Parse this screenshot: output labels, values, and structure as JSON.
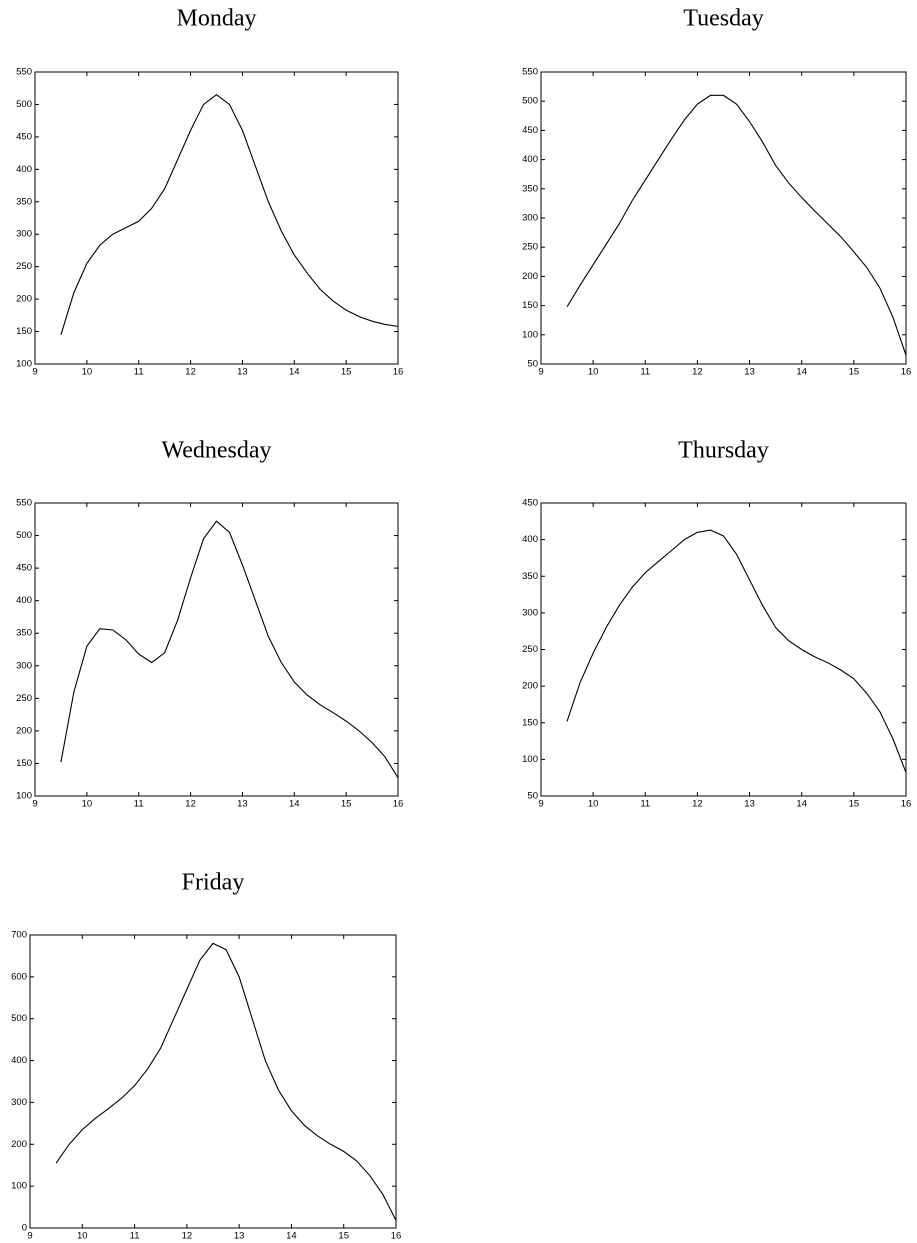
{
  "chart_data": [
    {
      "type": "line",
      "title": "Monday",
      "color": "#000000",
      "x": [
        9.5,
        9.75,
        10,
        10.25,
        10.5,
        10.75,
        11,
        11.25,
        11.5,
        11.75,
        12,
        12.25,
        12.5,
        12.75,
        13,
        13.25,
        13.5,
        13.75,
        14,
        14.25,
        14.5,
        14.75,
        15,
        15.25,
        15.5,
        15.75,
        16
      ],
      "values": [
        145,
        210,
        255,
        283,
        300,
        310,
        320,
        340,
        370,
        415,
        460,
        500,
        515,
        500,
        460,
        405,
        350,
        305,
        268,
        240,
        215,
        197,
        183,
        173,
        166,
        161,
        158
      ],
      "xlim": [
        9,
        16
      ],
      "xticks": [
        9,
        10,
        11,
        12,
        13,
        14,
        15,
        16
      ],
      "ylim": [
        100,
        550
      ],
      "yticks": [
        100,
        150,
        200,
        250,
        300,
        350,
        400,
        450,
        500,
        550
      ]
    },
    {
      "type": "line",
      "title": "Tuesday",
      "color": "#000000",
      "x": [
        9.5,
        9.75,
        10,
        10.25,
        10.5,
        10.75,
        11,
        11.25,
        11.5,
        11.75,
        12,
        12.25,
        12.5,
        12.75,
        13,
        13.25,
        13.5,
        13.75,
        14,
        14.25,
        14.5,
        14.75,
        15,
        15.25,
        15.5,
        15.75,
        16
      ],
      "values": [
        148,
        185,
        220,
        255,
        290,
        330,
        365,
        400,
        435,
        468,
        495,
        510,
        510,
        495,
        465,
        430,
        390,
        360,
        335,
        312,
        290,
        268,
        242,
        215,
        180,
        130,
        65
      ],
      "xlim": [
        9,
        16
      ],
      "xticks": [
        9,
        10,
        11,
        12,
        13,
        14,
        15,
        16
      ],
      "ylim": [
        50,
        550
      ],
      "yticks": [
        50,
        100,
        150,
        200,
        250,
        300,
        350,
        400,
        450,
        500,
        550
      ]
    },
    {
      "type": "line",
      "title": "Wednesday",
      "color": "#000000",
      "x": [
        9.5,
        9.75,
        10,
        10.25,
        10.5,
        10.75,
        11,
        11.25,
        11.5,
        11.75,
        12,
        12.25,
        12.5,
        12.75,
        13,
        13.25,
        13.5,
        13.75,
        14,
        14.25,
        14.5,
        14.75,
        15,
        15.25,
        15.5,
        15.75,
        16
      ],
      "values": [
        152,
        260,
        330,
        357,
        355,
        340,
        318,
        305,
        320,
        370,
        435,
        495,
        522,
        505,
        455,
        400,
        345,
        305,
        275,
        255,
        240,
        228,
        215,
        200,
        182,
        160,
        128
      ],
      "xlim": [
        9,
        16
      ],
      "xticks": [
        9,
        10,
        11,
        12,
        13,
        14,
        15,
        16
      ],
      "ylim": [
        100,
        550
      ],
      "yticks": [
        100,
        150,
        200,
        250,
        300,
        350,
        400,
        450,
        500,
        550
      ]
    },
    {
      "type": "line",
      "title": "Thursday",
      "color": "#000000",
      "x": [
        9.5,
        9.75,
        10,
        10.25,
        10.5,
        10.75,
        11,
        11.25,
        11.5,
        11.75,
        12,
        12.25,
        12.5,
        12.75,
        13,
        13.25,
        13.5,
        13.75,
        14,
        14.25,
        14.5,
        14.75,
        15,
        15.25,
        15.5,
        15.75,
        16
      ],
      "values": [
        152,
        205,
        245,
        280,
        310,
        335,
        355,
        370,
        385,
        400,
        410,
        413,
        405,
        380,
        345,
        310,
        280,
        262,
        250,
        240,
        232,
        222,
        210,
        190,
        165,
        128,
        82
      ],
      "xlim": [
        9,
        16
      ],
      "xticks": [
        9,
        10,
        11,
        12,
        13,
        14,
        15,
        16
      ],
      "ylim": [
        50,
        450
      ],
      "yticks": [
        50,
        100,
        150,
        200,
        250,
        300,
        350,
        400,
        450
      ]
    },
    {
      "type": "line",
      "title": "Friday",
      "color": "#000000",
      "x": [
        9.5,
        9.75,
        10,
        10.25,
        10.5,
        10.75,
        11,
        11.25,
        11.5,
        11.75,
        12,
        12.25,
        12.5,
        12.75,
        13,
        13.25,
        13.5,
        13.75,
        14,
        14.25,
        14.5,
        14.75,
        15,
        15.25,
        15.5,
        15.75,
        16
      ],
      "values": [
        155,
        200,
        235,
        262,
        285,
        310,
        340,
        380,
        430,
        500,
        570,
        640,
        680,
        665,
        600,
        500,
        400,
        330,
        280,
        245,
        220,
        200,
        183,
        160,
        125,
        80,
        18
      ],
      "xlim": [
        9,
        16
      ],
      "xticks": [
        9,
        10,
        11,
        12,
        13,
        14,
        15,
        16
      ],
      "ylim": [
        0,
        700
      ],
      "yticks": [
        0,
        100,
        200,
        300,
        400,
        500,
        600,
        700
      ]
    }
  ]
}
